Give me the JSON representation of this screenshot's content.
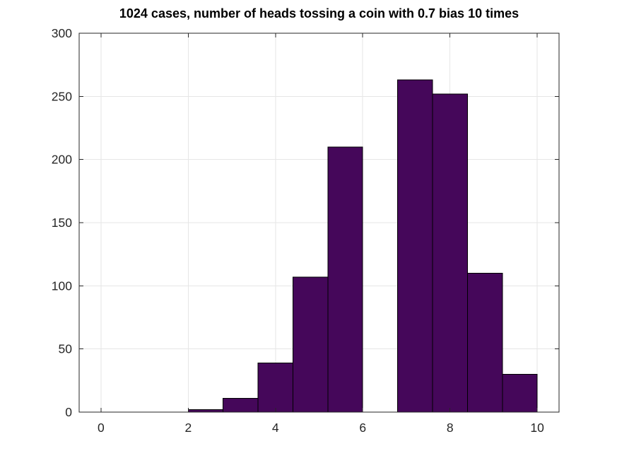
{
  "chart_data": {
    "type": "bar",
    "subtype": "histogram",
    "title": "1024 cases, number of heads tossing a coin with 0.7 bias 10 times",
    "xlabel": "",
    "ylabel": "",
    "bin_edges": [
      2.0,
      2.8,
      3.6,
      4.4,
      5.2,
      6.0,
      6.8,
      7.6,
      8.4,
      9.2,
      10.0
    ],
    "counts": [
      2,
      11,
      39,
      107,
      210,
      0,
      263,
      252,
      110,
      30
    ],
    "xlim": [
      -0.5,
      10.5
    ],
    "ylim": [
      0,
      300
    ],
    "x_ticks": [
      0,
      2,
      4,
      6,
      8,
      10
    ],
    "y_ticks": [
      0,
      50,
      100,
      150,
      200,
      250,
      300
    ],
    "grid": true,
    "legend": "none",
    "colors": {
      "bar_fill": "#45075A",
      "bar_edge": "#000000",
      "grid_line": "#e6e6e6",
      "axis_frame": "#262626",
      "tick_label": "#262626",
      "title_text": "#000000",
      "background": "#ffffff"
    }
  }
}
